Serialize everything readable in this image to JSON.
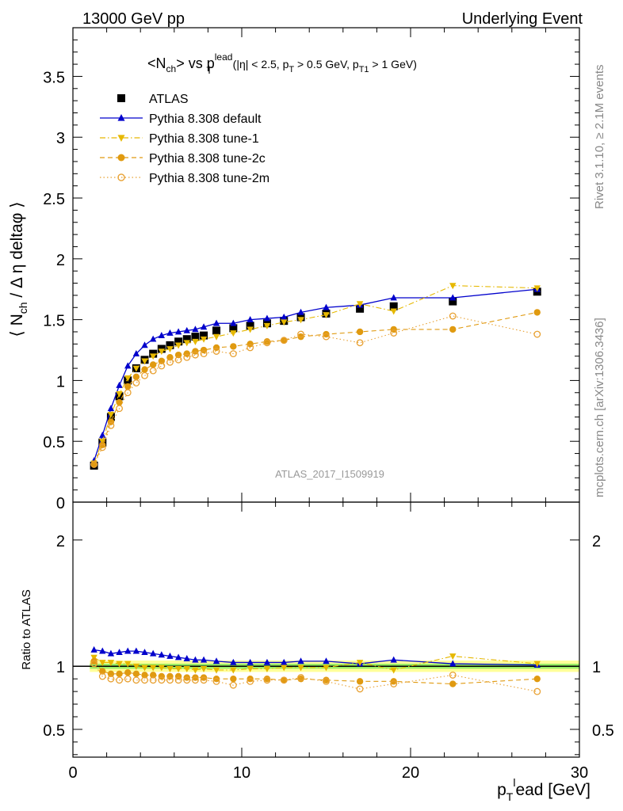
{
  "header": {
    "left": "13000 GeV pp",
    "right": "Underlying Event"
  },
  "side_labels": {
    "rivet": "Rivet 3.1.10, ≥ 2.1M events",
    "mcplots": "mcplots.cern.ch [arXiv:1306.3436]"
  },
  "watermark": "ATLAS_2017_I1509919",
  "colors": {
    "atlas": "#000000",
    "default": "#0000cc",
    "tune1": "#e6b800",
    "tune2c": "#e09a10",
    "tune2m": "#e8a030",
    "band_outer": "#ffff99",
    "band_inner": "#99ee66"
  },
  "chart_data": [
    {
      "type": "scatter",
      "panel": "main",
      "title": "<N_ch> vs p_T^lead (|η| < 2.5, p_T > 0.5 GeV, p_T1 > 1 GeV)",
      "title_parts": {
        "a": "<N",
        "a_sub": "ch",
        "b": "> vs p",
        "b_sup": "lead",
        "b_sub": "T",
        "c": " (|η| < 2.5, p",
        "c_sub": "T",
        "d": " > 0.5 GeV, p",
        "d_sub": "T1",
        "e": " > 1 GeV)"
      },
      "ylabel": "⟨ N_ch / Δ η deltaφ ⟩",
      "ylabel_parts": {
        "a": "⟨ N",
        "sub": "ch",
        "b": " / Δ η deltaφ ⟩"
      },
      "xlim": [
        0,
        30
      ],
      "ylim": [
        0,
        3.9
      ],
      "yticks": [
        "0",
        "0.5",
        "1",
        "1.5",
        "2",
        "2.5",
        "3",
        "3.5"
      ],
      "ytick_values": [
        0,
        0.5,
        1,
        1.5,
        2,
        2.5,
        3,
        3.5
      ],
      "legend_placement": "top-left",
      "x": [
        1.25,
        1.75,
        2.25,
        2.75,
        3.25,
        3.75,
        4.25,
        4.75,
        5.25,
        5.75,
        6.25,
        6.75,
        7.25,
        7.75,
        8.5,
        9.5,
        10.5,
        11.5,
        12.5,
        13.5,
        15,
        17,
        19,
        22.5,
        27.5
      ],
      "series": [
        {
          "name": "ATLAS",
          "key": "atlas",
          "marker": "square",
          "line": "none",
          "values": [
            0.3,
            0.49,
            0.7,
            0.87,
            1.0,
            1.1,
            1.17,
            1.22,
            1.26,
            1.29,
            1.32,
            1.34,
            1.36,
            1.37,
            1.41,
            1.43,
            1.45,
            1.47,
            1.49,
            1.52,
            1.55,
            1.59,
            1.61,
            1.65,
            1.73
          ]
        },
        {
          "name": "Pythia 8.308 default",
          "key": "default",
          "marker": "triangle-up",
          "line": "solid",
          "values": [
            0.34,
            0.55,
            0.77,
            0.96,
            1.12,
            1.22,
            1.29,
            1.34,
            1.37,
            1.39,
            1.4,
            1.41,
            1.42,
            1.44,
            1.47,
            1.47,
            1.5,
            1.51,
            1.52,
            1.56,
            1.6,
            1.62,
            1.68,
            1.68,
            1.75
          ]
        },
        {
          "name": "Pythia 8.308 tune-1",
          "key": "tune1",
          "marker": "triangle-down",
          "line": "dashdot",
          "values": [
            0.32,
            0.5,
            0.72,
            0.89,
            1.02,
            1.1,
            1.16,
            1.2,
            1.24,
            1.26,
            1.29,
            1.31,
            1.32,
            1.34,
            1.36,
            1.39,
            1.42,
            1.45,
            1.48,
            1.5,
            1.54,
            1.63,
            1.57,
            1.78,
            1.76
          ]
        },
        {
          "name": "Pythia 8.308 tune-2c",
          "key": "tune2c",
          "marker": "circle",
          "line": "dashed",
          "values": [
            0.31,
            0.47,
            0.66,
            0.82,
            0.95,
            1.03,
            1.09,
            1.13,
            1.16,
            1.19,
            1.21,
            1.22,
            1.24,
            1.25,
            1.27,
            1.28,
            1.3,
            1.32,
            1.33,
            1.36,
            1.38,
            1.4,
            1.42,
            1.42,
            1.56
          ]
        },
        {
          "name": "Pythia 8.308 tune-2m",
          "key": "tune2m",
          "marker": "circle-open",
          "line": "dotted",
          "values": [
            0.31,
            0.45,
            0.63,
            0.77,
            0.9,
            0.98,
            1.04,
            1.08,
            1.12,
            1.15,
            1.17,
            1.19,
            1.21,
            1.22,
            1.24,
            1.22,
            1.27,
            1.31,
            1.33,
            1.38,
            1.36,
            1.31,
            1.39,
            1.53,
            1.38
          ]
        }
      ]
    },
    {
      "type": "scatter",
      "panel": "ratio",
      "ylabel": "Ratio to ATLAS",
      "xlabel": "p_T^lead [GeV]",
      "xlabel_parts": {
        "a": "p",
        "sub": "T",
        "sup": "l",
        "b": "ead [GeV]"
      },
      "xlim": [
        0,
        30
      ],
      "ylim": [
        0.28,
        2.3
      ],
      "yticks": [
        "0.5",
        "1",
        "2"
      ],
      "ytick_values": [
        0.5,
        1,
        2
      ],
      "xticks": [
        "0",
        "10",
        "20",
        "30"
      ],
      "xtick_values": [
        0,
        10,
        20,
        30
      ],
      "x": [
        1.25,
        1.75,
        2.25,
        2.75,
        3.25,
        3.75,
        4.25,
        4.75,
        5.25,
        5.75,
        6.25,
        6.75,
        7.25,
        7.75,
        8.5,
        9.5,
        10.5,
        11.5,
        12.5,
        13.5,
        15,
        17,
        19,
        22.5,
        27.5
      ],
      "series": [
        {
          "name": "Pythia 8.308 default",
          "key": "default",
          "marker": "triangle-up",
          "line": "solid",
          "values": [
            1.13,
            1.12,
            1.1,
            1.11,
            1.12,
            1.12,
            1.11,
            1.1,
            1.09,
            1.08,
            1.07,
            1.06,
            1.05,
            1.05,
            1.04,
            1.03,
            1.03,
            1.03,
            1.03,
            1.04,
            1.04,
            1.02,
            1.05,
            1.02,
            1.01
          ]
        },
        {
          "name": "Pythia 8.308 tune-1",
          "key": "tune1",
          "marker": "triangle-down",
          "line": "dashdot",
          "values": [
            1.07,
            1.03,
            1.03,
            1.02,
            1.02,
            1.0,
            0.99,
            0.99,
            0.99,
            0.98,
            0.98,
            0.98,
            0.97,
            0.98,
            0.97,
            0.97,
            0.98,
            0.98,
            0.99,
            0.99,
            0.99,
            1.03,
            0.97,
            1.08,
            1.02
          ]
        },
        {
          "name": "Pythia 8.308 tune-2c",
          "key": "tune2c",
          "marker": "circle",
          "line": "dashed",
          "values": [
            1.04,
            0.96,
            0.94,
            0.94,
            0.95,
            0.94,
            0.93,
            0.93,
            0.92,
            0.92,
            0.92,
            0.91,
            0.91,
            0.91,
            0.9,
            0.9,
            0.9,
            0.9,
            0.89,
            0.9,
            0.89,
            0.88,
            0.88,
            0.86,
            0.9
          ]
        },
        {
          "name": "Pythia 8.308 tune-2m",
          "key": "tune2m",
          "marker": "circle-open",
          "line": "dotted",
          "values": [
            1.02,
            0.92,
            0.9,
            0.89,
            0.9,
            0.89,
            0.89,
            0.89,
            0.89,
            0.89,
            0.89,
            0.89,
            0.89,
            0.89,
            0.88,
            0.85,
            0.88,
            0.89,
            0.89,
            0.91,
            0.88,
            0.82,
            0.86,
            0.93,
            0.8
          ]
        }
      ]
    }
  ]
}
